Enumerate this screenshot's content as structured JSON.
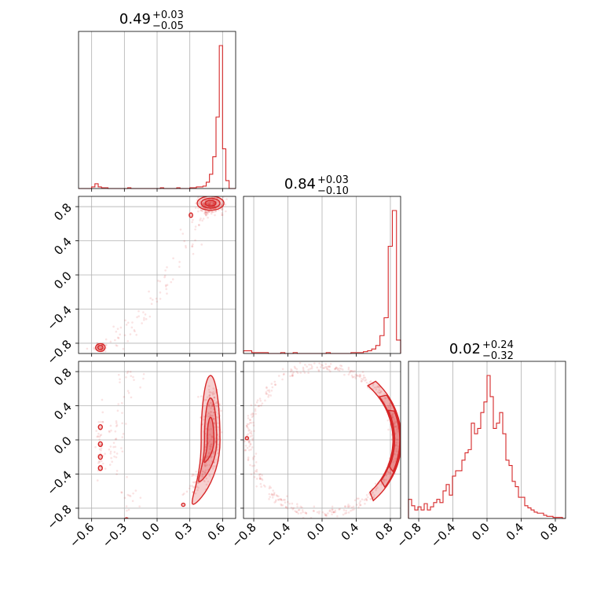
{
  "chart_data": {
    "type": "corner",
    "color": "#d62728",
    "parameters": [
      {
        "summary_value": "0.49",
        "upper_err": "+0.03",
        "lower_err": "−0.05",
        "range": [
          -0.72,
          0.72
        ],
        "ticks": [
          {
            "v": -0.6,
            "label": "−0.6"
          },
          {
            "v": -0.3,
            "label": "−0.3"
          },
          {
            "v": 0.0,
            "label": "0.0"
          },
          {
            "v": 0.3,
            "label": "0.3"
          },
          {
            "v": 0.6,
            "label": "0.6"
          }
        ]
      },
      {
        "summary_value": "0.84",
        "upper_err": "+0.03",
        "lower_err": "−0.10",
        "range": [
          -0.92,
          0.92
        ],
        "ticks": [
          {
            "v": -0.8,
            "label": "−0.8"
          },
          {
            "v": -0.4,
            "label": "−0.4"
          },
          {
            "v": 0.0,
            "label": "0.0"
          },
          {
            "v": 0.4,
            "label": "0.4"
          },
          {
            "v": 0.8,
            "label": "0.8"
          }
        ]
      },
      {
        "summary_value": "0.02",
        "upper_err": "+0.24",
        "lower_err": "−0.32",
        "range": [
          -0.92,
          0.92
        ],
        "ticks": [
          {
            "v": -0.8,
            "label": "−0.8"
          },
          {
            "v": -0.4,
            "label": "−0.4"
          },
          {
            "v": 0.0,
            "label": "0.0"
          },
          {
            "v": 0.4,
            "label": "0.4"
          },
          {
            "v": 0.8,
            "label": "0.8"
          }
        ]
      }
    ],
    "histograms": [
      {
        "bins": [
          -0.72,
          0.72
        ],
        "counts": [
          0,
          0,
          0,
          0,
          2,
          6,
          2,
          1,
          1,
          0,
          0,
          0,
          0,
          0,
          0,
          1,
          0,
          0,
          0,
          0,
          0,
          0,
          0,
          0,
          0,
          1,
          0,
          0,
          0,
          0,
          1,
          0,
          0,
          0,
          1,
          1,
          2,
          2,
          3,
          8,
          18,
          40,
          90,
          180,
          50,
          10,
          0,
          0
        ]
      },
      {
        "bins": [
          -0.92,
          0.92
        ],
        "counts": [
          3,
          3,
          1,
          1,
          1,
          1,
          0,
          0,
          0,
          1,
          0,
          0,
          1,
          0,
          0,
          0,
          0,
          0,
          0,
          0,
          1,
          0,
          0,
          0,
          0,
          0,
          1,
          1,
          1,
          2,
          3,
          5,
          9,
          20,
          40,
          120,
          160,
          15
        ]
      },
      {
        "bins": [
          -0.92,
          0.92
        ],
        "counts": [
          18,
          12,
          8,
          11,
          8,
          14,
          8,
          11,
          15,
          18,
          15,
          26,
          32,
          22,
          40,
          45,
          45,
          55,
          62,
          65,
          90,
          80,
          85,
          100,
          110,
          135,
          115,
          85,
          90,
          100,
          80,
          55,
          50,
          35,
          30,
          20,
          20,
          12,
          10,
          8,
          6,
          5,
          5,
          3,
          2,
          2,
          1,
          1,
          1,
          0
        ]
      }
    ]
  }
}
